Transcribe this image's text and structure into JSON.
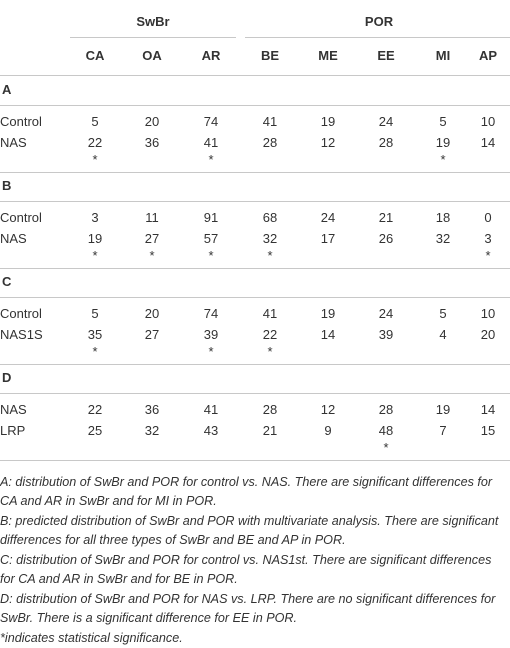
{
  "table": {
    "groups": [
      {
        "label": "SwBr",
        "span": 3
      },
      {
        "label": "POR",
        "span": 5
      }
    ],
    "columns": [
      "CA",
      "OA",
      "AR",
      "BE",
      "ME",
      "EE",
      "MI",
      "AP"
    ],
    "sections": [
      {
        "label": "A",
        "rows": [
          {
            "label": "Control",
            "values": [
              5,
              20,
              74,
              41,
              19,
              24,
              5,
              10
            ]
          },
          {
            "label": "NAS",
            "values": [
              22,
              36,
              41,
              28,
              12,
              28,
              19,
              14
            ]
          }
        ],
        "significance": [
          "*",
          null,
          "*",
          null,
          null,
          null,
          "*",
          null
        ]
      },
      {
        "label": "B",
        "rows": [
          {
            "label": "Control",
            "values": [
              3,
              11,
              91,
              68,
              24,
              21,
              18,
              0
            ]
          },
          {
            "label": "NAS",
            "values": [
              19,
              27,
              57,
              32,
              17,
              26,
              32,
              3
            ]
          }
        ],
        "significance": [
          "*",
          "*",
          "*",
          "*",
          null,
          null,
          null,
          "*"
        ]
      },
      {
        "label": "C",
        "rows": [
          {
            "label": "Control",
            "values": [
              5,
              20,
              74,
              41,
              19,
              24,
              5,
              10
            ]
          },
          {
            "label": "NAS1S",
            "values": [
              35,
              27,
              39,
              22,
              14,
              39,
              4,
              20
            ]
          }
        ],
        "significance": [
          "*",
          null,
          "*",
          "*",
          null,
          null,
          null,
          null
        ]
      },
      {
        "label": "D",
        "rows": [
          {
            "label": "NAS",
            "values": [
              22,
              36,
              41,
              28,
              12,
              28,
              19,
              14
            ]
          },
          {
            "label": "LRP",
            "values": [
              25,
              32,
              43,
              21,
              9,
              48,
              7,
              15
            ]
          }
        ],
        "significance": [
          null,
          null,
          null,
          null,
          null,
          "*",
          null,
          null
        ]
      }
    ],
    "footnotes": [
      "A: distribution of SwBr and POR for control vs. NAS. There are significant differences for CA and AR in SwBr and for MI in POR.",
      "B: predicted distribution of SwBr and POR with multivariate analysis. There are significant differences for all three types of SwBr and BE and AP in POR.",
      "C: distribution of SwBr and POR for control vs. NAS1st. There are significant differences for CA and AR in SwBr and for BE in POR.",
      "D: distribution of SwBr and POR for NAS vs. LRP. There are no significant differences for SwBr. There is a significant difference for EE in POR.",
      "*indicates statistical significance."
    ]
  }
}
